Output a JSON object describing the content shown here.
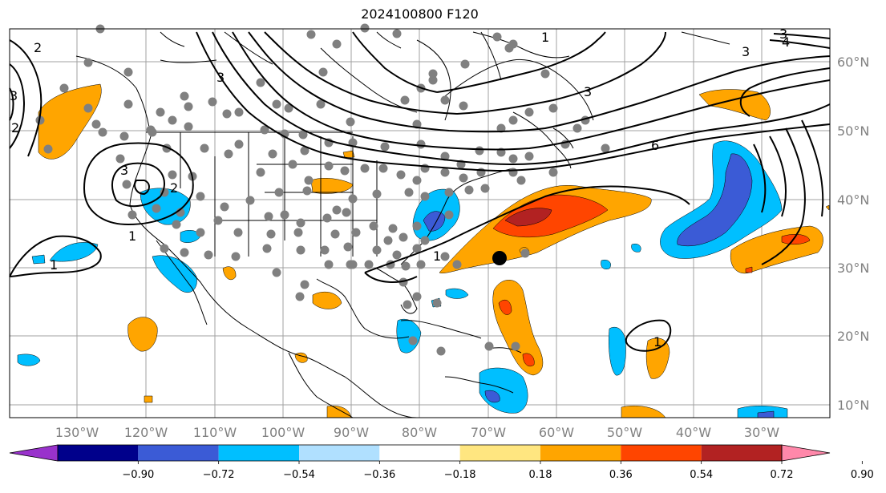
{
  "title": "2024100800 F120",
  "map": {
    "lon_labels": [
      "130°W",
      "120°W",
      "110°W",
      "100°W",
      "90°W",
      "80°W",
      "70°W",
      "60°W",
      "50°W",
      "40°W",
      "30°W"
    ],
    "lat_labels": [
      "60°N",
      "50°N",
      "40°N",
      "30°N",
      "20°N",
      "10°N"
    ],
    "contour_labels": [
      "3",
      "4",
      "3",
      "3",
      "6",
      "3",
      "2",
      "1",
      "1",
      "2",
      "3",
      "2",
      "3",
      "1",
      "1",
      "1"
    ],
    "colors": {
      "ocean": "#ffffff",
      "coast": "#000000",
      "grid": "#a0a0a0",
      "dots": "#808080",
      "storm_marker": "#000000"
    }
  },
  "colorbar": {
    "ticks": [
      "−0.90",
      "−0.72",
      "−0.54",
      "−0.36",
      "−0.18",
      "0.18",
      "0.36",
      "0.54",
      "0.72",
      "0.90"
    ],
    "colors": [
      "#9932cc",
      "#00008b",
      "#3b5bd6",
      "#00bfff",
      "#b0e0ff",
      "#ffffff",
      "#ffe680",
      "#ffa500",
      "#ff4500",
      "#b22222",
      "#ff88aa"
    ]
  }
}
